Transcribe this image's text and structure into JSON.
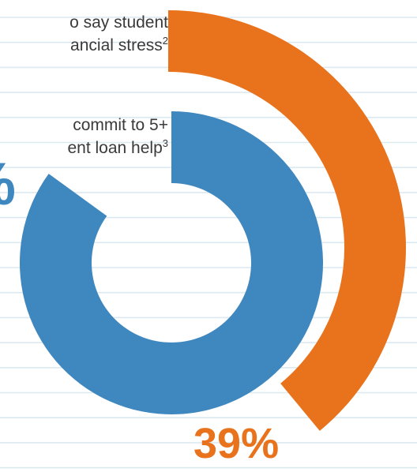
{
  "colors": {
    "background": "#ffffff",
    "ruled_line": "#dbe9f0",
    "orange": "#e8731c",
    "blue": "#3f87bf",
    "caption_text": "#3a3a3a"
  },
  "chart_data": [
    {
      "type": "donut",
      "series_color": "orange",
      "value": 39,
      "max": 100,
      "label": "39%",
      "caption_lines": [
        "o say student",
        "ancial stress"
      ],
      "caption_footnote": "2"
    },
    {
      "type": "donut",
      "series_color": "blue",
      "value": 85,
      "max": 100,
      "label": "%",
      "caption_lines": [
        "commit to 5+",
        "ent loan help"
      ],
      "caption_footnote": "3"
    }
  ]
}
